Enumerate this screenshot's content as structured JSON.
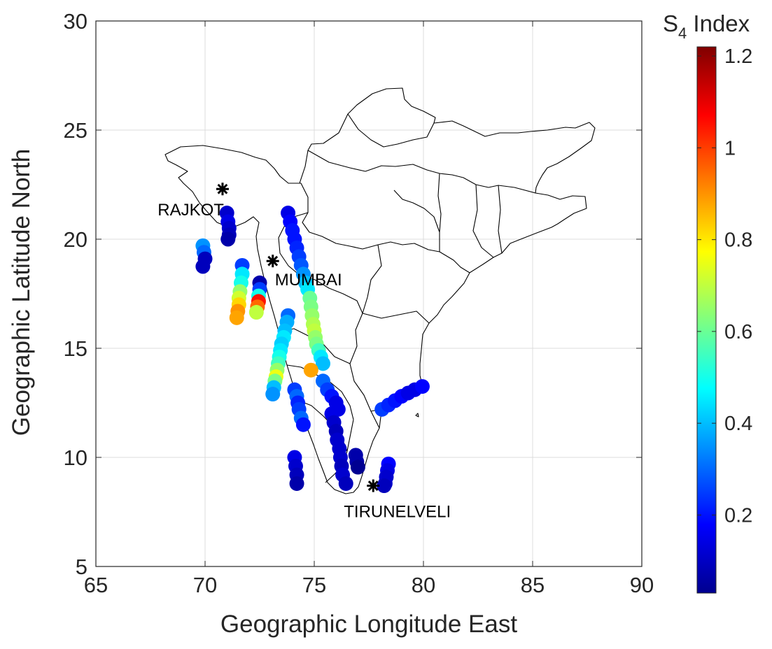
{
  "chart_data": {
    "type": "scatter",
    "xlabel": "Geographic Longitude East",
    "ylabel": "Geographic Latitude North",
    "xlim": [
      65,
      90
    ],
    "ylim": [
      5,
      30
    ],
    "xticks": [
      65,
      70,
      75,
      80,
      85,
      90
    ],
    "yticks": [
      5,
      10,
      15,
      20,
      25,
      30
    ],
    "grid": true,
    "colorbar": {
      "title": "S",
      "title_subscript": "4",
      "title_suffix": " Index",
      "colormap": "jet",
      "range": [
        0.03,
        1.22
      ],
      "ticks": [
        0.2,
        0.4,
        0.6,
        0.8,
        1,
        1.2
      ],
      "tick_labels": [
        "0.2",
        "0.4",
        "0.6",
        "0.8",
        "1",
        "1.2"
      ]
    },
    "stations": [
      {
        "name": "RAJKOT",
        "lon": 70.8,
        "lat": 22.3
      },
      {
        "name": "MUMBAI",
        "lon": 73.1,
        "lat": 19.0
      },
      {
        "name": "TIRUNELVELI",
        "lon": 77.7,
        "lat": 8.7
      }
    ],
    "series": [
      {
        "points": [
          [
            69.9,
            19.7,
            0.35
          ],
          [
            69.95,
            19.4,
            0.3
          ],
          [
            70.0,
            19.1,
            0.1
          ],
          [
            69.9,
            18.75,
            0.1
          ]
        ]
      },
      {
        "points": [
          [
            71.0,
            21.2,
            0.12
          ],
          [
            71.05,
            20.8,
            0.15
          ],
          [
            71.1,
            20.5,
            0.12
          ],
          [
            71.1,
            20.2,
            0.1
          ],
          [
            71.05,
            20.0,
            0.08
          ]
        ]
      },
      {
        "points": [
          [
            71.7,
            18.8,
            0.25
          ],
          [
            71.7,
            18.4,
            0.45
          ],
          [
            71.65,
            18.0,
            0.5
          ],
          [
            71.6,
            17.6,
            0.65
          ],
          [
            71.55,
            17.3,
            0.72
          ],
          [
            71.55,
            17.0,
            0.82
          ],
          [
            71.5,
            16.7,
            0.9
          ],
          [
            71.45,
            16.4,
            0.88
          ]
        ]
      },
      {
        "points": [
          [
            72.5,
            18.0,
            0.08
          ],
          [
            72.5,
            17.7,
            0.25
          ],
          [
            72.45,
            17.4,
            0.5
          ],
          [
            72.45,
            17.15,
            1.05
          ],
          [
            72.4,
            16.9,
            0.95
          ],
          [
            72.35,
            16.65,
            0.7
          ]
        ]
      },
      {
        "points": [
          [
            73.8,
            21.2,
            0.15
          ],
          [
            73.9,
            20.8,
            0.18
          ],
          [
            74.0,
            20.4,
            0.2
          ],
          [
            74.1,
            20.0,
            0.2
          ],
          [
            74.2,
            19.6,
            0.22
          ],
          [
            74.3,
            19.2,
            0.25
          ],
          [
            74.4,
            18.8,
            0.28
          ],
          [
            74.5,
            18.4,
            0.35
          ],
          [
            74.6,
            18.0,
            0.4
          ],
          [
            74.7,
            17.7,
            0.45
          ],
          [
            74.8,
            17.3,
            0.6
          ],
          [
            74.85,
            16.9,
            0.62
          ],
          [
            74.9,
            16.5,
            0.65
          ],
          [
            74.95,
            16.1,
            0.68
          ],
          [
            75.0,
            15.8,
            0.7
          ],
          [
            75.05,
            15.5,
            0.65
          ],
          [
            75.1,
            15.2,
            0.62
          ],
          [
            75.2,
            14.9,
            0.55
          ],
          [
            75.3,
            14.6,
            0.45
          ],
          [
            75.4,
            14.3,
            0.4
          ],
          [
            74.85,
            14.0,
            0.88
          ]
        ]
      },
      {
        "points": [
          [
            73.8,
            16.5,
            0.3
          ],
          [
            73.75,
            16.2,
            0.38
          ],
          [
            73.65,
            15.8,
            0.4
          ],
          [
            73.6,
            15.5,
            0.45
          ],
          [
            73.5,
            15.2,
            0.42
          ],
          [
            73.45,
            14.9,
            0.45
          ],
          [
            73.4,
            14.6,
            0.5
          ],
          [
            73.35,
            14.3,
            0.55
          ],
          [
            73.3,
            14.0,
            0.65
          ],
          [
            73.25,
            13.7,
            0.75
          ],
          [
            73.2,
            13.5,
            0.62
          ],
          [
            73.15,
            13.2,
            0.4
          ],
          [
            73.1,
            12.9,
            0.35
          ]
        ]
      },
      {
        "points": [
          [
            75.4,
            13.5,
            0.3
          ],
          [
            75.6,
            13.1,
            0.25
          ],
          [
            75.8,
            12.8,
            0.2
          ],
          [
            76.0,
            12.5,
            0.15
          ],
          [
            76.1,
            12.2,
            0.15
          ]
        ]
      },
      {
        "points": [
          [
            74.1,
            13.1,
            0.25
          ],
          [
            74.2,
            12.8,
            0.3
          ],
          [
            74.25,
            12.5,
            0.22
          ],
          [
            74.3,
            12.2,
            0.25
          ],
          [
            74.4,
            11.8,
            0.3
          ],
          [
            74.5,
            11.5,
            0.2
          ]
        ]
      },
      {
        "points": [
          [
            75.8,
            12.0,
            0.15
          ],
          [
            75.9,
            11.6,
            0.12
          ],
          [
            76.0,
            11.2,
            0.1
          ],
          [
            76.05,
            10.8,
            0.12
          ],
          [
            76.15,
            10.4,
            0.12
          ],
          [
            76.2,
            10.0,
            0.12
          ],
          [
            76.25,
            9.6,
            0.1
          ],
          [
            76.3,
            9.2,
            0.12
          ],
          [
            76.45,
            8.8,
            0.1
          ]
        ]
      },
      {
        "points": [
          [
            74.1,
            10.0,
            0.15
          ],
          [
            74.15,
            9.6,
            0.12
          ],
          [
            74.2,
            9.2,
            0.1
          ],
          [
            74.2,
            8.8,
            0.08
          ]
        ]
      },
      {
        "points": [
          [
            76.9,
            10.1,
            0.08
          ],
          [
            76.95,
            9.8,
            0.08
          ],
          [
            77.0,
            9.55,
            0.05
          ]
        ]
      },
      {
        "points": [
          [
            78.4,
            9.7,
            0.18
          ],
          [
            78.35,
            9.4,
            0.15
          ],
          [
            78.3,
            9.1,
            0.12
          ],
          [
            78.25,
            8.8,
            0.12
          ],
          [
            78.2,
            8.7,
            0.1
          ]
        ]
      },
      {
        "points": [
          [
            78.1,
            12.2,
            0.25
          ],
          [
            78.4,
            12.4,
            0.22
          ],
          [
            78.7,
            12.6,
            0.2
          ],
          [
            79.0,
            12.8,
            0.18
          ],
          [
            79.3,
            12.95,
            0.15
          ],
          [
            79.6,
            13.1,
            0.15
          ],
          [
            79.95,
            13.25,
            0.18
          ]
        ]
      }
    ]
  }
}
